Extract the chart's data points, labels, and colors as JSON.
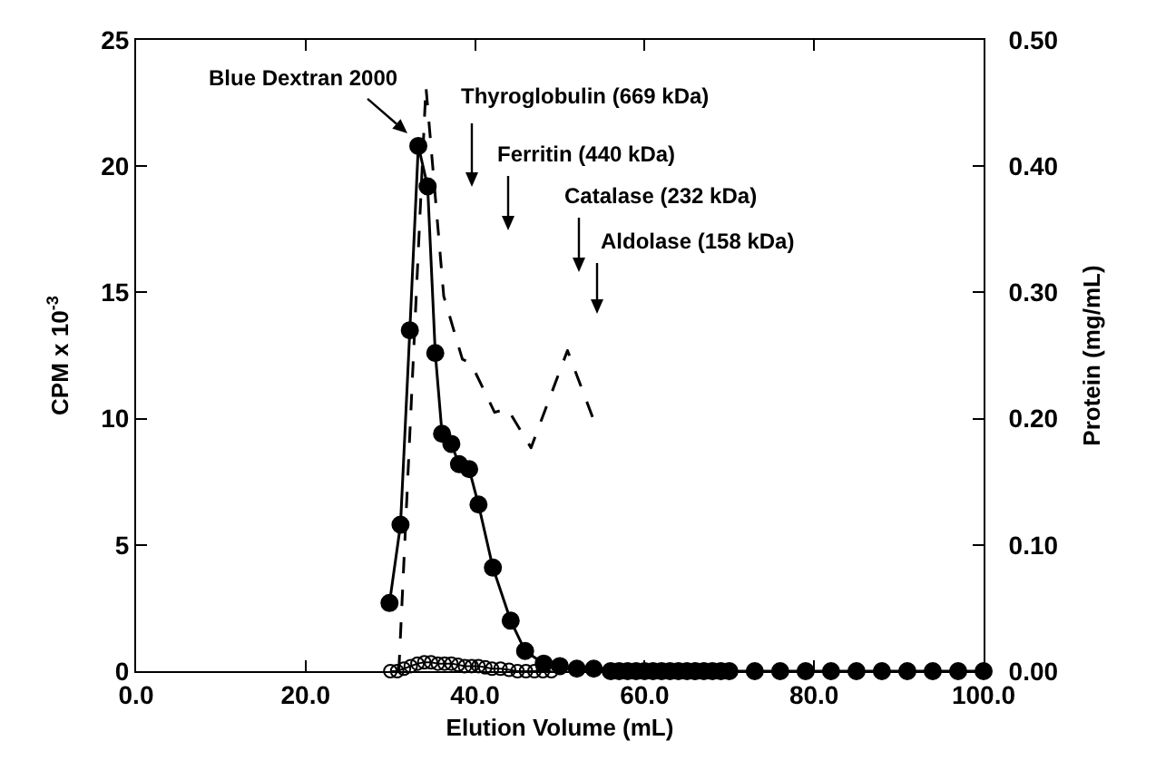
{
  "chart_data": {
    "type": "line",
    "xlabel": "Elution Volume (mL)",
    "ylabel": "CPM x 10$^{-3}$",
    "y2label": "Protein (mg/mL)",
    "xlim": [
      0,
      100
    ],
    "xticks": [
      {
        "value": 0,
        "label": "0.0"
      },
      {
        "value": 20,
        "label": "20.0"
      },
      {
        "value": 40,
        "label": "40.0"
      },
      {
        "value": 60,
        "label": "60.0"
      },
      {
        "value": 80,
        "label": "80.0"
      },
      {
        "value": 100,
        "label": "100.0"
      }
    ],
    "ylim": [
      0,
      25
    ],
    "yticks": [
      0,
      5,
      10,
      15,
      20,
      25
    ],
    "y2lim": [
      0,
      0.5
    ],
    "y2ticks": [
      {
        "value": 0,
        "label": "0.00"
      },
      {
        "value": 0.1,
        "label": "0.10"
      },
      {
        "value": 0.2,
        "label": "0.20"
      },
      {
        "value": 0.3,
        "label": "0.30"
      },
      {
        "value": 0.4,
        "label": "0.40"
      },
      {
        "value": 0.5,
        "label": "0.50"
      }
    ],
    "grid": false,
    "series": [
      {
        "color": "#000000",
        "marker": "circle",
        "line_style": "solid",
        "x": [
          29.9,
          31.2,
          32.3,
          33.3,
          34.4,
          35.3,
          36.1,
          37.2,
          38.1,
          39.3,
          40.4,
          42.1,
          44.2,
          45.9,
          48.1,
          50,
          52,
          54,
          56,
          57,
          58,
          59,
          60,
          61,
          62,
          63,
          64,
          65,
          66,
          67,
          68,
          69,
          70,
          73,
          76,
          79,
          82,
          85,
          88,
          91,
          94,
          97,
          100
        ],
        "values": [
          2.7,
          5.8,
          13.5,
          20.8,
          19.2,
          12.6,
          9.4,
          9.0,
          8.2,
          8.0,
          6.6,
          4.1,
          2.0,
          0.8,
          0.3,
          0.2,
          0.1,
          0.1,
          0,
          0,
          0,
          0,
          0,
          0,
          0,
          0,
          0,
          0,
          0,
          0,
          0,
          0,
          0,
          0,
          0,
          0,
          0,
          0,
          0,
          0,
          0,
          0,
          0
        ]
      },
      {
        "color": "#000000",
        "marker": "circle-open",
        "line_style": "solid",
        "x": [
          30,
          30.8,
          31.6,
          32.4,
          33.2,
          34,
          34.8,
          35.6,
          36.4,
          37.2,
          38,
          38.8,
          39.6,
          40.4,
          41.2,
          42,
          43,
          44,
          45,
          46,
          47,
          48,
          49
        ],
        "values": [
          0,
          0,
          0.1,
          0.2,
          0.3,
          0.35,
          0.35,
          0.3,
          0.3,
          0.3,
          0.25,
          0.2,
          0.2,
          0.2,
          0.15,
          0.1,
          0.1,
          0.05,
          0,
          0,
          0,
          0,
          0
        ]
      },
      {
        "color": "#000000",
        "marker": "none",
        "line_style": "dashed",
        "axis": "y2",
        "x": [
          31.0,
          34.2,
          36.3,
          38.5,
          39.5,
          42.3,
          43.8,
          46.6,
          50.9,
          54.1
        ],
        "values": [
          0,
          0.463,
          0.297,
          0.247,
          0.244,
          0.205,
          0.208,
          0.177,
          0.254,
          0.197
        ]
      }
    ],
    "annotations": [
      {
        "text": "Blue Dextran 2000",
        "x": 33.3,
        "y": 20.8
      },
      "Thyroglobulin (669 kDa)",
      "Ferritin (440 kDa)",
      "Catalase (232 kDa)",
      "Aldolase (158 kDa)"
    ]
  }
}
